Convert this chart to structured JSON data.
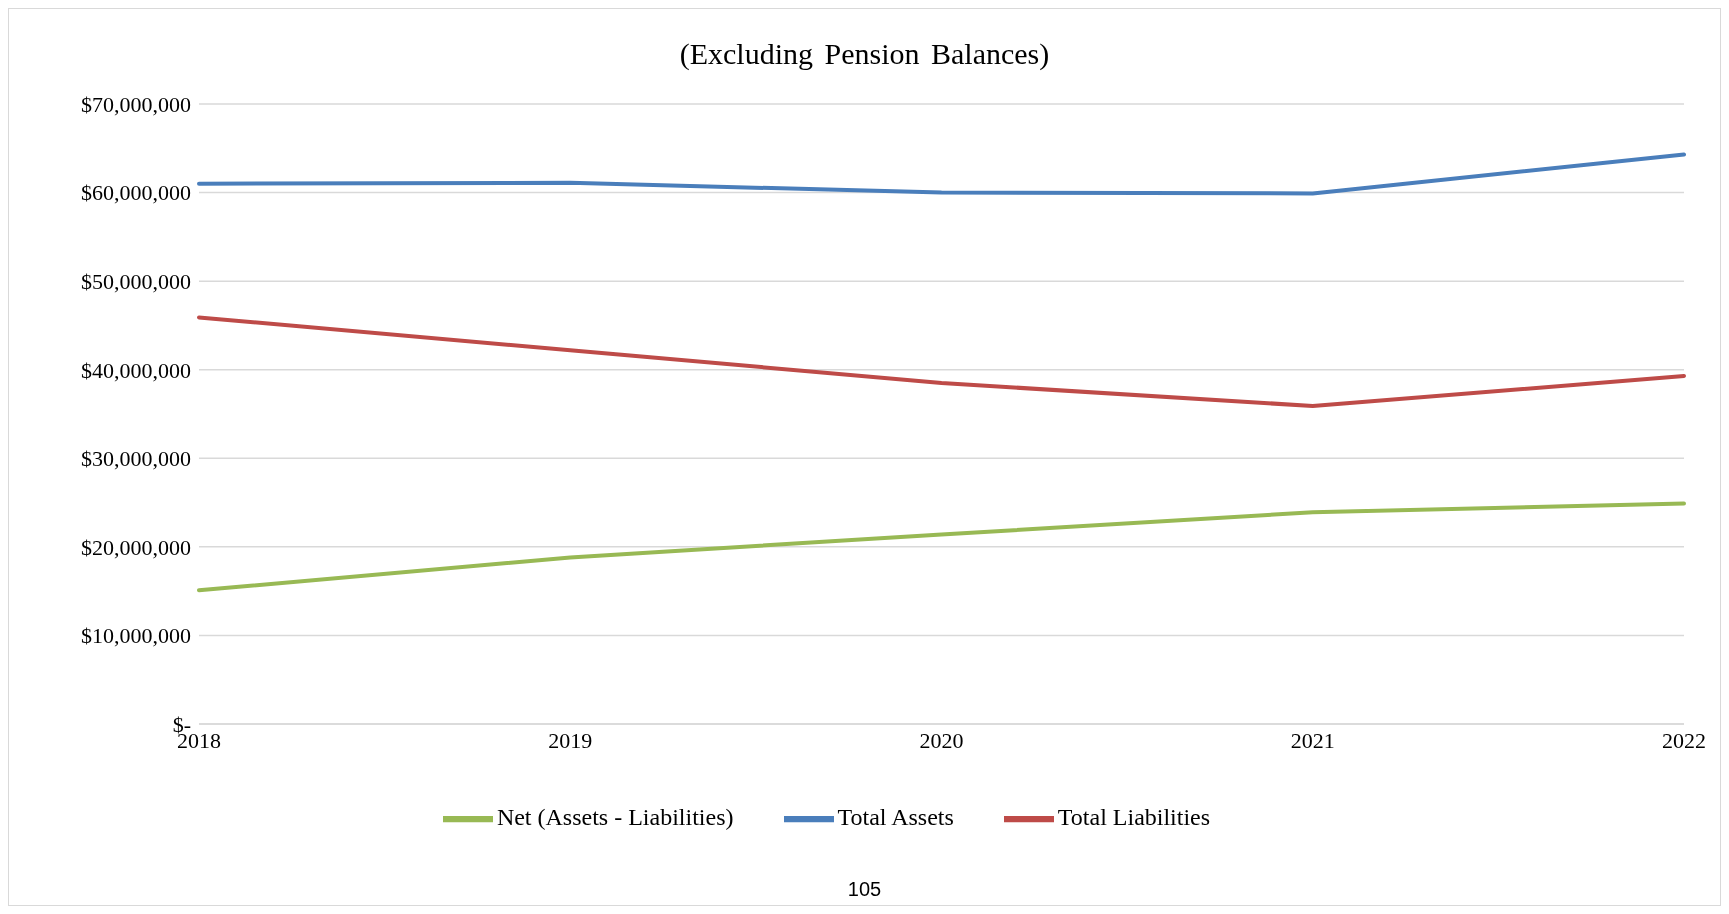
{
  "chart_data": {
    "type": "line",
    "title": "(Excluding Pension Balances)",
    "categories": [
      "2018",
      "2019",
      "2020",
      "2021",
      "2022"
    ],
    "series": [
      {
        "name": "Total Assets",
        "color": "#4a7ebb",
        "values": [
          61000000,
          61100000,
          60000000,
          59900000,
          64300000
        ]
      },
      {
        "name": "Total Liabilities",
        "color": "#be4b48",
        "values": [
          45900000,
          42200000,
          38500000,
          35900000,
          39300000
        ]
      },
      {
        "name": "Net (Assets - Liabilities)",
        "color": "#98b954",
        "values": [
          15100000,
          18800000,
          21400000,
          23900000,
          24900000
        ]
      }
    ],
    "ylim": [
      0,
      70000000
    ],
    "yticks": [
      {
        "value": 0,
        "label": "$-"
      },
      {
        "value": 10000000,
        "label": "$10,000,000"
      },
      {
        "value": 20000000,
        "label": "$20,000,000"
      },
      {
        "value": 30000000,
        "label": "$30,000,000"
      },
      {
        "value": 40000000,
        "label": "$40,000,000"
      },
      {
        "value": 50000000,
        "label": "$50,000,000"
      },
      {
        "value": 60000000,
        "label": "$60,000,000"
      },
      {
        "value": 70000000,
        "label": "$70,000,000"
      }
    ],
    "grid": "y",
    "legend": "bottom",
    "marker": "none",
    "line_style": "solid",
    "annotations": [
      "105"
    ]
  }
}
